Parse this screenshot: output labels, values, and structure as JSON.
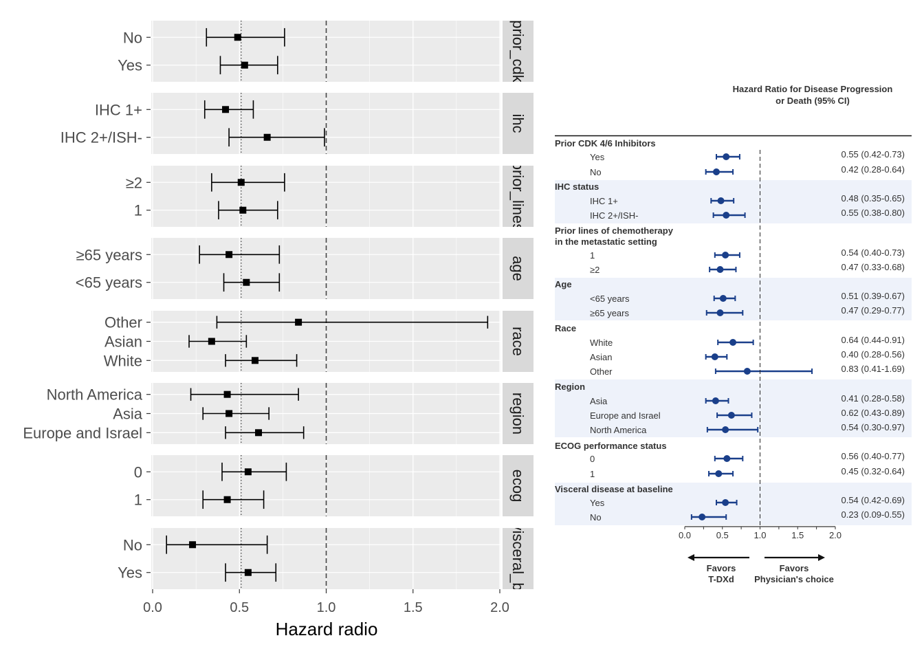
{
  "chart_data": [
    {
      "type": "forest",
      "xlabel": "Hazard radio",
      "xlim": [
        0,
        2.0
      ],
      "x_ticks": [
        "0.0",
        "0.5",
        "1.0",
        "1.5",
        "2.0"
      ],
      "reference_lines": {
        "dashed": 1.0,
        "dotted": 0.51
      },
      "grid": true,
      "facets": [
        {
          "strip": "prior_cdk",
          "rows": [
            {
              "label": "No",
              "hr": 0.49,
              "lo": 0.31,
              "hi": 0.76
            },
            {
              "label": "Yes",
              "hr": 0.53,
              "lo": 0.39,
              "hi": 0.72
            }
          ]
        },
        {
          "strip": "ihc",
          "rows": [
            {
              "label": "IHC 1+",
              "hr": 0.42,
              "lo": 0.3,
              "hi": 0.58
            },
            {
              "label": "IHC 2+/ISH-",
              "hr": 0.66,
              "lo": 0.44,
              "hi": 0.99
            }
          ]
        },
        {
          "strip": "prior_lines",
          "rows": [
            {
              "label": "≥2",
              "hr": 0.51,
              "lo": 0.34,
              "hi": 0.76
            },
            {
              "label": "1",
              "hr": 0.52,
              "lo": 0.38,
              "hi": 0.72
            }
          ]
        },
        {
          "strip": "age",
          "rows": [
            {
              "label": "≥65 years",
              "hr": 0.44,
              "lo": 0.27,
              "hi": 0.73
            },
            {
              "label": "<65 years",
              "hr": 0.54,
              "lo": 0.41,
              "hi": 0.73
            }
          ]
        },
        {
          "strip": "race",
          "rows": [
            {
              "label": "Other",
              "hr": 0.84,
              "lo": 0.37,
              "hi": 1.93
            },
            {
              "label": "Asian",
              "hr": 0.34,
              "lo": 0.21,
              "hi": 0.54
            },
            {
              "label": "White",
              "hr": 0.59,
              "lo": 0.42,
              "hi": 0.83
            }
          ]
        },
        {
          "strip": "region",
          "rows": [
            {
              "label": "North America",
              "hr": 0.43,
              "lo": 0.22,
              "hi": 0.84
            },
            {
              "label": "Asia",
              "hr": 0.44,
              "lo": 0.29,
              "hi": 0.67
            },
            {
              "label": "Europe and Israel",
              "hr": 0.61,
              "lo": 0.42,
              "hi": 0.87
            }
          ]
        },
        {
          "strip": "ecog",
          "rows": [
            {
              "label": "0",
              "hr": 0.55,
              "lo": 0.4,
              "hi": 0.77
            },
            {
              "label": "1",
              "hr": 0.43,
              "lo": 0.29,
              "hi": 0.64
            }
          ]
        },
        {
          "strip": "visceral_bl",
          "rows": [
            {
              "label": "No",
              "hr": 0.23,
              "lo": 0.08,
              "hi": 0.66
            },
            {
              "label": "Yes",
              "hr": 0.55,
              "lo": 0.42,
              "hi": 0.71
            }
          ]
        }
      ],
      "colors": {
        "panel": "#ebebeb",
        "strip": "#d9d9d9",
        "marker": "#000000"
      }
    },
    {
      "type": "forest",
      "title": "Hazard Ratio for Disease Progression or Death  (95% CI)",
      "title_lines": [
        "Hazard Ratio for Disease Progression",
        "or Death  (95% CI)"
      ],
      "xlim": [
        0,
        2.0
      ],
      "x_ticks": [
        "0.0",
        "0.5",
        "1.0",
        "1.5",
        "2.0"
      ],
      "reference_lines": {
        "dashed": 1.0
      },
      "favors_left": [
        "Favors",
        "T-DXd"
      ],
      "favors_right": [
        "Favors",
        "Physician's choice"
      ],
      "colors": {
        "marker": "#1a3f8a",
        "band": "#eef2fa"
      },
      "groups": [
        {
          "header": [
            "Prior CDK 4/6 Inhibitors"
          ],
          "shaded": false,
          "rows": [
            {
              "label": "Yes",
              "hr": 0.55,
              "lo": 0.42,
              "hi": 0.73,
              "text": "0.55 (0.42-0.73)"
            },
            {
              "label": "No",
              "hr": 0.42,
              "lo": 0.28,
              "hi": 0.64,
              "text": "0.42 (0.28-0.64)"
            }
          ]
        },
        {
          "header": [
            "IHC status"
          ],
          "shaded": true,
          "rows": [
            {
              "label": "IHC 1+",
              "hr": 0.48,
              "lo": 0.35,
              "hi": 0.65,
              "text": "0.48 (0.35-0.65)"
            },
            {
              "label": "IHC 2+/ISH-",
              "hr": 0.55,
              "lo": 0.38,
              "hi": 0.8,
              "text": "0.55 (0.38-0.80)"
            }
          ]
        },
        {
          "header": [
            "Prior lines of chemotherapy",
            "in the metastatic setting"
          ],
          "shaded": false,
          "rows": [
            {
              "label": "1",
              "hr": 0.54,
              "lo": 0.4,
              "hi": 0.73,
              "text": "0.54 (0.40-0.73)"
            },
            {
              "label": "≥2",
              "hr": 0.47,
              "lo": 0.33,
              "hi": 0.68,
              "text": "0.47 (0.33-0.68)"
            }
          ]
        },
        {
          "header": [
            "Age"
          ],
          "shaded": true,
          "rows": [
            {
              "label": "<65 years",
              "hr": 0.51,
              "lo": 0.39,
              "hi": 0.67,
              "text": "0.51 (0.39-0.67)"
            },
            {
              "label": "≥65 years",
              "hr": 0.47,
              "lo": 0.29,
              "hi": 0.77,
              "text": "0.47 (0.29-0.77)"
            }
          ]
        },
        {
          "header": [
            "Race"
          ],
          "shaded": false,
          "rows": [
            {
              "label": "White",
              "hr": 0.64,
              "lo": 0.44,
              "hi": 0.91,
              "text": "0.64 (0.44-0.91)"
            },
            {
              "label": "Asian",
              "hr": 0.4,
              "lo": 0.28,
              "hi": 0.56,
              "text": "0.40 (0.28-0.56)"
            },
            {
              "label": "Other",
              "hr": 0.83,
              "lo": 0.41,
              "hi": 1.69,
              "text": "0.83 (0.41-1.69)"
            }
          ]
        },
        {
          "header": [
            "Region"
          ],
          "shaded": true,
          "rows": [
            {
              "label": "Asia",
              "hr": 0.41,
              "lo": 0.28,
              "hi": 0.58,
              "text": "0.41 (0.28-0.58)"
            },
            {
              "label": "Europe and Israel",
              "hr": 0.62,
              "lo": 0.43,
              "hi": 0.89,
              "text": "0.62 (0.43-0.89)"
            },
            {
              "label": "North America",
              "hr": 0.54,
              "lo": 0.3,
              "hi": 0.97,
              "text": "0.54 (0.30-0.97)"
            }
          ]
        },
        {
          "header": [
            "ECOG performance status"
          ],
          "shaded": false,
          "rows": [
            {
              "label": "0",
              "hr": 0.56,
              "lo": 0.4,
              "hi": 0.77,
              "text": "0.56 (0.40-0.77)"
            },
            {
              "label": "1",
              "hr": 0.45,
              "lo": 0.32,
              "hi": 0.64,
              "text": "0.45 (0.32-0.64)"
            }
          ]
        },
        {
          "header": [
            "Visceral disease at baseline"
          ],
          "shaded": true,
          "rows": [
            {
              "label": "Yes",
              "hr": 0.54,
              "lo": 0.42,
              "hi": 0.69,
              "text": "0.54 (0.42-0.69)"
            },
            {
              "label": "No",
              "hr": 0.23,
              "lo": 0.09,
              "hi": 0.55,
              "text": "0.23 (0.09-0.55)"
            }
          ]
        }
      ]
    }
  ]
}
